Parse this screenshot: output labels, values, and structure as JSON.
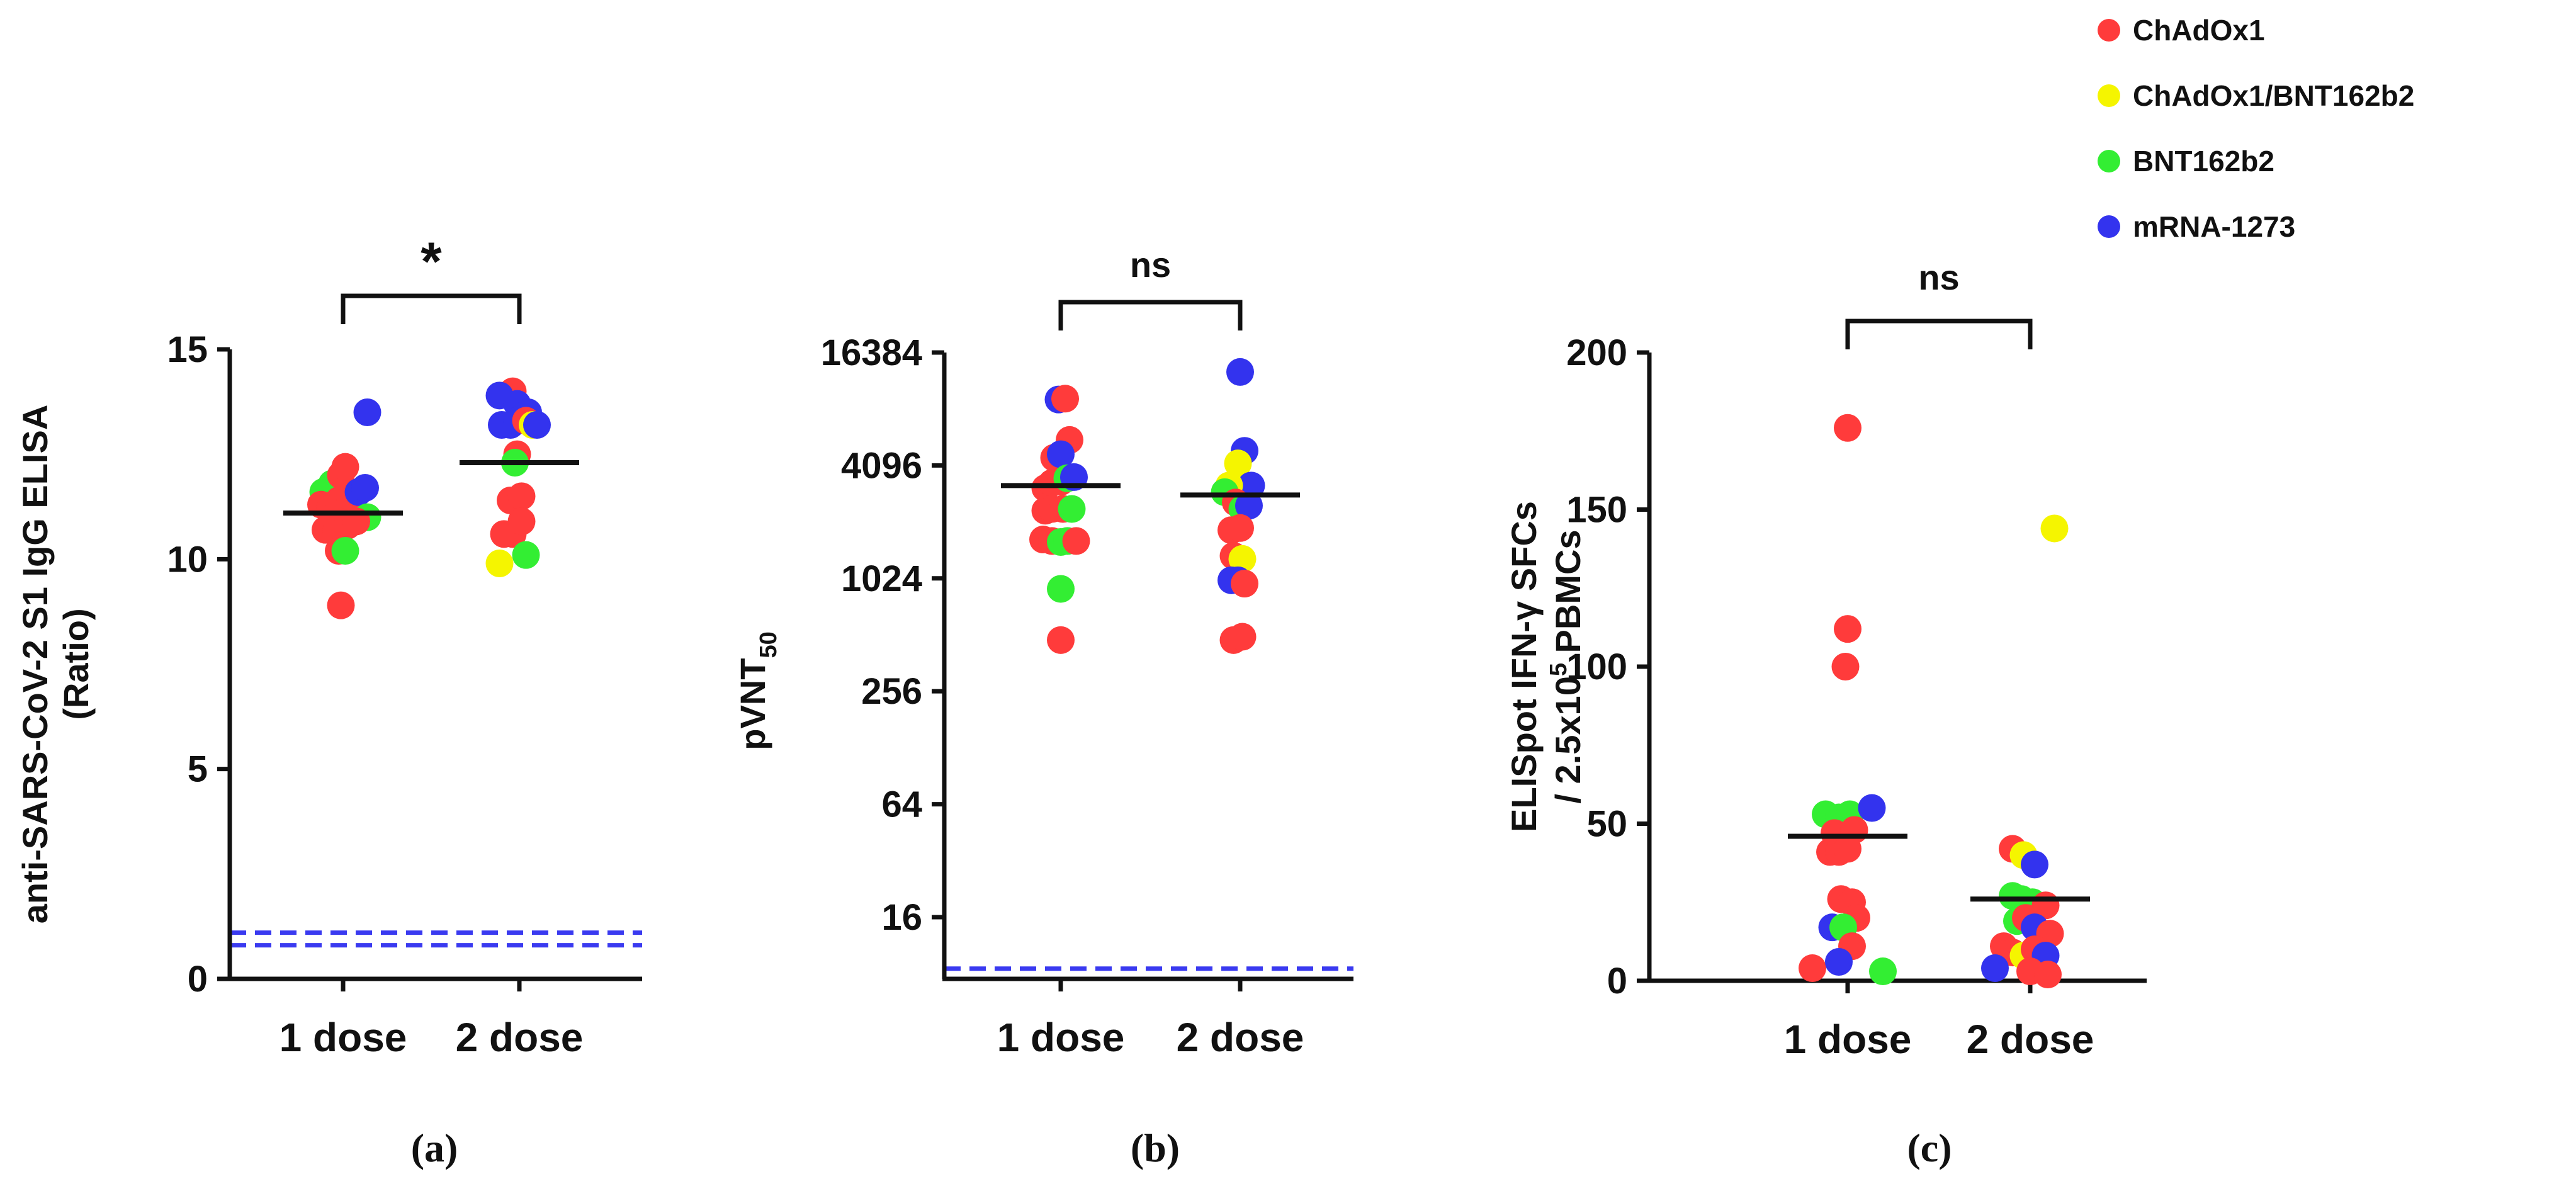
{
  "legend": [
    {
      "label": "ChAdOx1",
      "color": "#ff3b3b"
    },
    {
      "label": "ChAdOx1/BNT162b2",
      "color": "#f5f500"
    },
    {
      "label": "BNT162b2",
      "color": "#33ee33"
    },
    {
      "label": "mRNA-1273",
      "color": "#3333ee"
    }
  ],
  "colors": {
    "ChAdOx1": "#ff3b3b",
    "ChAdOx1/BNT162b2": "#f5f500",
    "BNT162b2": "#33ee33",
    "mRNA-1273": "#3333ee",
    "threshold": "#3a3af0"
  },
  "chart_data": [
    {
      "type": "scatter",
      "panel_label": "(a)",
      "ylabel_line1": "anti-SARS-CoV-2 S1 IgG ELISA",
      "ylabel_line2": "(Ratio)",
      "ylabel_sub": "",
      "ylabel_sup": "",
      "ylabel_after": "",
      "categories": [
        "1 dose",
        "2 dose"
      ],
      "yscale": "linear",
      "ylim": [
        0,
        15
      ],
      "yticks": [
        0,
        5,
        10,
        15
      ],
      "ytick_labels": [
        "0",
        "5",
        "10",
        "15"
      ],
      "significance": "*",
      "medians": [
        11.1,
        12.3
      ],
      "thresholds": [
        0.8,
        1.1
      ],
      "points": [
        {
          "group": 0,
          "dx": 0.55,
          "y": 13.5,
          "vaccine": "mRNA-1273"
        },
        {
          "group": 0,
          "dx": -0.45,
          "y": 11.6,
          "vaccine": "BNT162b2"
        },
        {
          "group": 0,
          "dx": -0.25,
          "y": 11.8,
          "vaccine": "BNT162b2"
        },
        {
          "group": 0,
          "dx": -0.05,
          "y": 12.0,
          "vaccine": "ChAdOx1"
        },
        {
          "group": 0,
          "dx": 0.05,
          "y": 12.2,
          "vaccine": "ChAdOx1"
        },
        {
          "group": 0,
          "dx": -0.5,
          "y": 11.3,
          "vaccine": "ChAdOx1"
        },
        {
          "group": 0,
          "dx": -0.3,
          "y": 11.2,
          "vaccine": "ChAdOx1"
        },
        {
          "group": 0,
          "dx": -0.1,
          "y": 11.4,
          "vaccine": "ChAdOx1"
        },
        {
          "group": 0,
          "dx": 0.15,
          "y": 11.5,
          "vaccine": "ChAdOx1"
        },
        {
          "group": 0,
          "dx": 0.35,
          "y": 11.6,
          "vaccine": "mRNA-1273"
        },
        {
          "group": 0,
          "dx": 0.5,
          "y": 11.7,
          "vaccine": "mRNA-1273"
        },
        {
          "group": 0,
          "dx": 0.55,
          "y": 11.0,
          "vaccine": "BNT162b2"
        },
        {
          "group": 0,
          "dx": -0.4,
          "y": 10.7,
          "vaccine": "ChAdOx1"
        },
        {
          "group": 0,
          "dx": -0.15,
          "y": 10.7,
          "vaccine": "ChAdOx1"
        },
        {
          "group": 0,
          "dx": 0.1,
          "y": 10.8,
          "vaccine": "ChAdOx1"
        },
        {
          "group": 0,
          "dx": 0.3,
          "y": 10.9,
          "vaccine": "ChAdOx1"
        },
        {
          "group": 0,
          "dx": -0.1,
          "y": 10.2,
          "vaccine": "ChAdOx1"
        },
        {
          "group": 0,
          "dx": 0.05,
          "y": 10.2,
          "vaccine": "BNT162b2"
        },
        {
          "group": 0,
          "dx": -0.05,
          "y": 8.9,
          "vaccine": "ChAdOx1"
        },
        {
          "group": 1,
          "dx": -0.15,
          "y": 14.0,
          "vaccine": "ChAdOx1"
        },
        {
          "group": 1,
          "dx": -0.45,
          "y": 13.9,
          "vaccine": "mRNA-1273"
        },
        {
          "group": 1,
          "dx": -0.05,
          "y": 13.7,
          "vaccine": "mRNA-1273"
        },
        {
          "group": 1,
          "dx": 0.2,
          "y": 13.5,
          "vaccine": "mRNA-1273"
        },
        {
          "group": 1,
          "dx": -0.4,
          "y": 13.2,
          "vaccine": "mRNA-1273"
        },
        {
          "group": 1,
          "dx": -0.2,
          "y": 13.2,
          "vaccine": "mRNA-1273"
        },
        {
          "group": 1,
          "dx": -0.05,
          "y": 13.3,
          "vaccine": "mRNA-1273"
        },
        {
          "group": 1,
          "dx": 0.15,
          "y": 13.3,
          "vaccine": "ChAdOx1"
        },
        {
          "group": 1,
          "dx": 0.3,
          "y": 13.2,
          "vaccine": "ChAdOx1/BNT162b2"
        },
        {
          "group": 1,
          "dx": 0.4,
          "y": 13.2,
          "vaccine": "mRNA-1273"
        },
        {
          "group": 1,
          "dx": -0.05,
          "y": 12.5,
          "vaccine": "ChAdOx1"
        },
        {
          "group": 1,
          "dx": -0.1,
          "y": 12.3,
          "vaccine": "BNT162b2"
        },
        {
          "group": 1,
          "dx": -0.2,
          "y": 11.4,
          "vaccine": "ChAdOx1"
        },
        {
          "group": 1,
          "dx": 0.05,
          "y": 11.5,
          "vaccine": "ChAdOx1"
        },
        {
          "group": 1,
          "dx": -0.35,
          "y": 10.6,
          "vaccine": "ChAdOx1"
        },
        {
          "group": 1,
          "dx": -0.15,
          "y": 10.6,
          "vaccine": "ChAdOx1"
        },
        {
          "group": 1,
          "dx": 0.05,
          "y": 10.9,
          "vaccine": "ChAdOx1"
        },
        {
          "group": 1,
          "dx": -0.45,
          "y": 9.9,
          "vaccine": "ChAdOx1/BNT162b2"
        },
        {
          "group": 1,
          "dx": 0.15,
          "y": 10.1,
          "vaccine": "BNT162b2"
        }
      ]
    },
    {
      "type": "scatter",
      "panel_label": "(b)",
      "ylabel_line1": "",
      "ylabel_line2": "",
      "ylabel_sub": "50",
      "ylabel_sup": "",
      "ylabel_pre": "pVNT",
      "ylabel_after": "",
      "categories": [
        "1 dose",
        "2 dose"
      ],
      "yscale": "log2",
      "ylim": [
        7.5,
        16384
      ],
      "yticks": [
        16,
        64,
        256,
        1024,
        4096,
        16384
      ],
      "ytick_labels": [
        "16",
        "64",
        "256",
        "1024",
        "4096",
        "16384"
      ],
      "significance": "ns",
      "medians": [
        3200,
        2850
      ],
      "thresholds": [
        8.5
      ],
      "points": [
        {
          "group": 0,
          "dx": -0.05,
          "y": 9200,
          "vaccine": "mRNA-1273"
        },
        {
          "group": 0,
          "dx": 0.1,
          "y": 9300,
          "vaccine": "ChAdOx1"
        },
        {
          "group": 0,
          "dx": 0.2,
          "y": 5600,
          "vaccine": "ChAdOx1"
        },
        {
          "group": 0,
          "dx": -0.15,
          "y": 4500,
          "vaccine": "ChAdOx1"
        },
        {
          "group": 0,
          "dx": 0.0,
          "y": 4700,
          "vaccine": "mRNA-1273"
        },
        {
          "group": 0,
          "dx": -0.35,
          "y": 3100,
          "vaccine": "ChAdOx1"
        },
        {
          "group": 0,
          "dx": -0.2,
          "y": 3300,
          "vaccine": "ChAdOx1"
        },
        {
          "group": 0,
          "dx": 0.0,
          "y": 3350,
          "vaccine": "ChAdOx1"
        },
        {
          "group": 0,
          "dx": 0.15,
          "y": 3500,
          "vaccine": "BNT162b2"
        },
        {
          "group": 0,
          "dx": 0.3,
          "y": 3550,
          "vaccine": "mRNA-1273"
        },
        {
          "group": 0,
          "dx": -0.35,
          "y": 2350,
          "vaccine": "ChAdOx1"
        },
        {
          "group": 0,
          "dx": -0.2,
          "y": 2400,
          "vaccine": "ChAdOx1"
        },
        {
          "group": 0,
          "dx": 0.05,
          "y": 2400,
          "vaccine": "ChAdOx1"
        },
        {
          "group": 0,
          "dx": 0.25,
          "y": 2400,
          "vaccine": "BNT162b2"
        },
        {
          "group": 0,
          "dx": -0.4,
          "y": 1650,
          "vaccine": "ChAdOx1"
        },
        {
          "group": 0,
          "dx": -0.2,
          "y": 1620,
          "vaccine": "ChAdOx1"
        },
        {
          "group": 0,
          "dx": 0.0,
          "y": 1600,
          "vaccine": "BNT162b2"
        },
        {
          "group": 0,
          "dx": 0.15,
          "y": 1620,
          "vaccine": "BNT162b2"
        },
        {
          "group": 0,
          "dx": 0.35,
          "y": 1620,
          "vaccine": "ChAdOx1"
        },
        {
          "group": 0,
          "dx": 0.0,
          "y": 900,
          "vaccine": "BNT162b2"
        },
        {
          "group": 0,
          "dx": 0.0,
          "y": 480,
          "vaccine": "ChAdOx1"
        },
        {
          "group": 1,
          "dx": 0.0,
          "y": 12900,
          "vaccine": "mRNA-1273"
        },
        {
          "group": 1,
          "dx": 0.1,
          "y": 4900,
          "vaccine": "mRNA-1273"
        },
        {
          "group": 1,
          "dx": -0.05,
          "y": 4200,
          "vaccine": "ChAdOx1/BNT162b2"
        },
        {
          "group": 1,
          "dx": 0.25,
          "y": 3200,
          "vaccine": "mRNA-1273"
        },
        {
          "group": 1,
          "dx": -0.25,
          "y": 3200,
          "vaccine": "ChAdOx1/BNT162b2"
        },
        {
          "group": 1,
          "dx": -0.35,
          "y": 2950,
          "vaccine": "BNT162b2"
        },
        {
          "group": 1,
          "dx": -0.1,
          "y": 2600,
          "vaccine": "ChAdOx1"
        },
        {
          "group": 1,
          "dx": 0.05,
          "y": 2400,
          "vaccine": "BNT162b2"
        },
        {
          "group": 1,
          "dx": 0.2,
          "y": 2500,
          "vaccine": "mRNA-1273"
        },
        {
          "group": 1,
          "dx": -0.2,
          "y": 1850,
          "vaccine": "ChAdOx1"
        },
        {
          "group": 1,
          "dx": 0.0,
          "y": 1900,
          "vaccine": "ChAdOx1"
        },
        {
          "group": 1,
          "dx": -0.15,
          "y": 1350,
          "vaccine": "ChAdOx1"
        },
        {
          "group": 1,
          "dx": 0.05,
          "y": 1300,
          "vaccine": "ChAdOx1/BNT162b2"
        },
        {
          "group": 1,
          "dx": -0.2,
          "y": 1000,
          "vaccine": "mRNA-1273"
        },
        {
          "group": 1,
          "dx": -0.05,
          "y": 1000,
          "vaccine": "mRNA-1273"
        },
        {
          "group": 1,
          "dx": 0.1,
          "y": 960,
          "vaccine": "ChAdOx1"
        },
        {
          "group": 1,
          "dx": -0.15,
          "y": 480,
          "vaccine": "ChAdOx1"
        },
        {
          "group": 1,
          "dx": 0.05,
          "y": 500,
          "vaccine": "ChAdOx1"
        }
      ]
    },
    {
      "type": "scatter",
      "panel_label": "(c)",
      "ylabel_line1": "ELISpot IFN-γ SFCs",
      "ylabel_line2": "",
      "ylabel_pre": "/ 2.5x10",
      "ylabel_sup": "5",
      "ylabel_after": " PBMCs",
      "ylabel_sub": "",
      "categories": [
        "1 dose",
        "2 dose"
      ],
      "yscale": "linear",
      "ylim": [
        0,
        200
      ],
      "yticks": [
        0,
        50,
        100,
        150,
        200
      ],
      "ytick_labels": [
        "0",
        "50",
        "100",
        "150",
        "200"
      ],
      "significance": "ns",
      "medians": [
        46,
        26
      ],
      "thresholds": [],
      "points": [
        {
          "group": 0,
          "dx": 0.0,
          "y": 176,
          "vaccine": "ChAdOx1"
        },
        {
          "group": 0,
          "dx": 0.0,
          "y": 112,
          "vaccine": "ChAdOx1"
        },
        {
          "group": 0,
          "dx": -0.05,
          "y": 100,
          "vaccine": "ChAdOx1"
        },
        {
          "group": 0,
          "dx": -0.5,
          "y": 53,
          "vaccine": "BNT162b2"
        },
        {
          "group": 0,
          "dx": -0.2,
          "y": 52,
          "vaccine": "BNT162b2"
        },
        {
          "group": 0,
          "dx": 0.05,
          "y": 53,
          "vaccine": "BNT162b2"
        },
        {
          "group": 0,
          "dx": 0.55,
          "y": 55,
          "vaccine": "mRNA-1273"
        },
        {
          "group": 0,
          "dx": -0.3,
          "y": 47,
          "vaccine": "ChAdOx1"
        },
        {
          "group": 0,
          "dx": 0.15,
          "y": 48,
          "vaccine": "ChAdOx1"
        },
        {
          "group": 0,
          "dx": -0.4,
          "y": 41,
          "vaccine": "ChAdOx1"
        },
        {
          "group": 0,
          "dx": -0.2,
          "y": 41,
          "vaccine": "ChAdOx1"
        },
        {
          "group": 0,
          "dx": 0.0,
          "y": 42,
          "vaccine": "ChAdOx1"
        },
        {
          "group": 0,
          "dx": -0.15,
          "y": 26,
          "vaccine": "ChAdOx1"
        },
        {
          "group": 0,
          "dx": 0.1,
          "y": 25,
          "vaccine": "ChAdOx1"
        },
        {
          "group": 0,
          "dx": 0.2,
          "y": 20,
          "vaccine": "ChAdOx1"
        },
        {
          "group": 0,
          "dx": -0.35,
          "y": 17,
          "vaccine": "mRNA-1273"
        },
        {
          "group": 0,
          "dx": -0.1,
          "y": 17,
          "vaccine": "BNT162b2"
        },
        {
          "group": 0,
          "dx": 0.1,
          "y": 11,
          "vaccine": "ChAdOx1"
        },
        {
          "group": 0,
          "dx": -0.8,
          "y": 4,
          "vaccine": "ChAdOx1"
        },
        {
          "group": 0,
          "dx": -0.2,
          "y": 6,
          "vaccine": "mRNA-1273"
        },
        {
          "group": 0,
          "dx": 0.8,
          "y": 3,
          "vaccine": "BNT162b2"
        },
        {
          "group": 1,
          "dx": 0.55,
          "y": 144,
          "vaccine": "ChAdOx1/BNT162b2"
        },
        {
          "group": 1,
          "dx": -0.4,
          "y": 42,
          "vaccine": "ChAdOx1"
        },
        {
          "group": 1,
          "dx": -0.15,
          "y": 40,
          "vaccine": "ChAdOx1/BNT162b2"
        },
        {
          "group": 1,
          "dx": 0.1,
          "y": 37,
          "vaccine": "mRNA-1273"
        },
        {
          "group": 1,
          "dx": -0.4,
          "y": 27,
          "vaccine": "BNT162b2"
        },
        {
          "group": 1,
          "dx": -0.2,
          "y": 26,
          "vaccine": "BNT162b2"
        },
        {
          "group": 1,
          "dx": 0.05,
          "y": 25,
          "vaccine": "BNT162b2"
        },
        {
          "group": 1,
          "dx": 0.35,
          "y": 24,
          "vaccine": "ChAdOx1"
        },
        {
          "group": 1,
          "dx": -0.3,
          "y": 19,
          "vaccine": "BNT162b2"
        },
        {
          "group": 1,
          "dx": -0.1,
          "y": 20,
          "vaccine": "ChAdOx1"
        },
        {
          "group": 1,
          "dx": 0.1,
          "y": 17,
          "vaccine": "mRNA-1273"
        },
        {
          "group": 1,
          "dx": 0.45,
          "y": 15,
          "vaccine": "ChAdOx1"
        },
        {
          "group": 1,
          "dx": -0.6,
          "y": 11,
          "vaccine": "ChAdOx1"
        },
        {
          "group": 1,
          "dx": -0.4,
          "y": 9,
          "vaccine": "ChAdOx1"
        },
        {
          "group": 1,
          "dx": -0.15,
          "y": 8,
          "vaccine": "ChAdOx1/BNT162b2"
        },
        {
          "group": 1,
          "dx": 0.1,
          "y": 10,
          "vaccine": "ChAdOx1"
        },
        {
          "group": 1,
          "dx": 0.35,
          "y": 8,
          "vaccine": "mRNA-1273"
        },
        {
          "group": 1,
          "dx": -0.8,
          "y": 4,
          "vaccine": "mRNA-1273"
        },
        {
          "group": 1,
          "dx": 0.0,
          "y": 3,
          "vaccine": "ChAdOx1"
        },
        {
          "group": 1,
          "dx": 0.4,
          "y": 2,
          "vaccine": "ChAdOx1"
        }
      ]
    }
  ]
}
